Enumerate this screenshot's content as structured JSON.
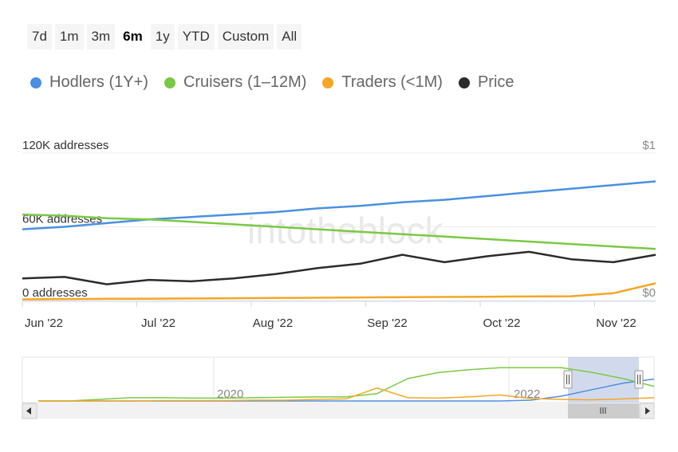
{
  "range_selector": {
    "buttons": [
      {
        "label": "7d"
      },
      {
        "label": "1m"
      },
      {
        "label": "3m"
      },
      {
        "label": "6m",
        "active": true
      },
      {
        "label": "1y"
      },
      {
        "label": "YTD"
      },
      {
        "label": "Custom"
      },
      {
        "label": "All"
      }
    ]
  },
  "legend": [
    {
      "label": "Hodlers (1Y+)",
      "color": "#4a90e2"
    },
    {
      "label": "Cruisers (1–12M)",
      "color": "#7ac943"
    },
    {
      "label": "Traders (<1M)",
      "color": "#f5a623"
    },
    {
      "label": "Price",
      "color": "#2b2b2b"
    }
  ],
  "watermark": "intotheblock",
  "chart_data": {
    "type": "line",
    "x_labels": [
      "Jun '22",
      "Jul '22",
      "Aug '22",
      "Sep '22",
      "Oct '22",
      "Nov '22"
    ],
    "y_left": {
      "ticks": [
        "120K addresses",
        "60K addresses",
        "0 addresses"
      ],
      "ylim": [
        0,
        120000
      ]
    },
    "y_right": {
      "ticks": [
        "$1",
        "$0"
      ],
      "ylim": [
        0,
        1
      ]
    },
    "grid": true,
    "series": [
      {
        "name": "Hodlers (1Y+)",
        "axis": "left",
        "color": "#4a90e2",
        "values": [
          58000,
          60000,
          63000,
          66000,
          68000,
          70000,
          72000,
          75000,
          77000,
          80000,
          82000,
          85000,
          88000,
          91000,
          94000,
          97000
        ]
      },
      {
        "name": "Cruisers (1–12M)",
        "axis": "left",
        "color": "#7ac943",
        "values": [
          70000,
          69000,
          67000,
          66000,
          64000,
          62000,
          60000,
          58000,
          56000,
          54000,
          52000,
          50000,
          48000,
          46000,
          44000,
          42000
        ]
      },
      {
        "name": "Traders (<1M)",
        "axis": "left",
        "color": "#f5a623",
        "values": [
          1000,
          1200,
          1400,
          1500,
          1700,
          1900,
          2100,
          2300,
          2500,
          2700,
          2900,
          3100,
          3300,
          3500,
          6000,
          14000
        ]
      },
      {
        "name": "Price",
        "axis": "right",
        "color": "#2b2b2b",
        "values": [
          0.15,
          0.16,
          0.11,
          0.14,
          0.13,
          0.15,
          0.18,
          0.22,
          0.25,
          0.31,
          0.26,
          0.3,
          0.33,
          0.28,
          0.26,
          0.31
        ]
      }
    ],
    "navigator": {
      "year_labels": [
        "2020",
        "2022"
      ],
      "series": [
        {
          "name": "Hodlers (1Y+)",
          "color": "#4a90e2",
          "values": [
            0.0,
            0.0,
            0.0,
            0.0,
            0.0,
            0.0,
            0.0,
            0.0,
            0.0,
            0.0,
            0.0,
            0.0,
            0.0,
            0.0,
            0.0,
            0.0,
            0.02,
            0.12,
            0.28,
            0.44,
            0.54
          ]
        },
        {
          "name": "Cruisers (1–12M)",
          "color": "#7ac943",
          "values": [
            0.0,
            0.0,
            0.04,
            0.08,
            0.08,
            0.07,
            0.07,
            0.08,
            0.09,
            0.1,
            0.1,
            0.18,
            0.55,
            0.7,
            0.77,
            0.82,
            0.82,
            0.82,
            0.7,
            0.55,
            0.36
          ]
        },
        {
          "name": "Traders (<1M)",
          "color": "#f5a623",
          "values": [
            0.0,
            0.0,
            0.0,
            0.0,
            0.01,
            0.01,
            0.01,
            0.02,
            0.02,
            0.04,
            0.05,
            0.32,
            0.08,
            0.07,
            0.1,
            0.15,
            0.06,
            0.04,
            0.03,
            0.05,
            0.08
          ]
        }
      ]
    }
  }
}
